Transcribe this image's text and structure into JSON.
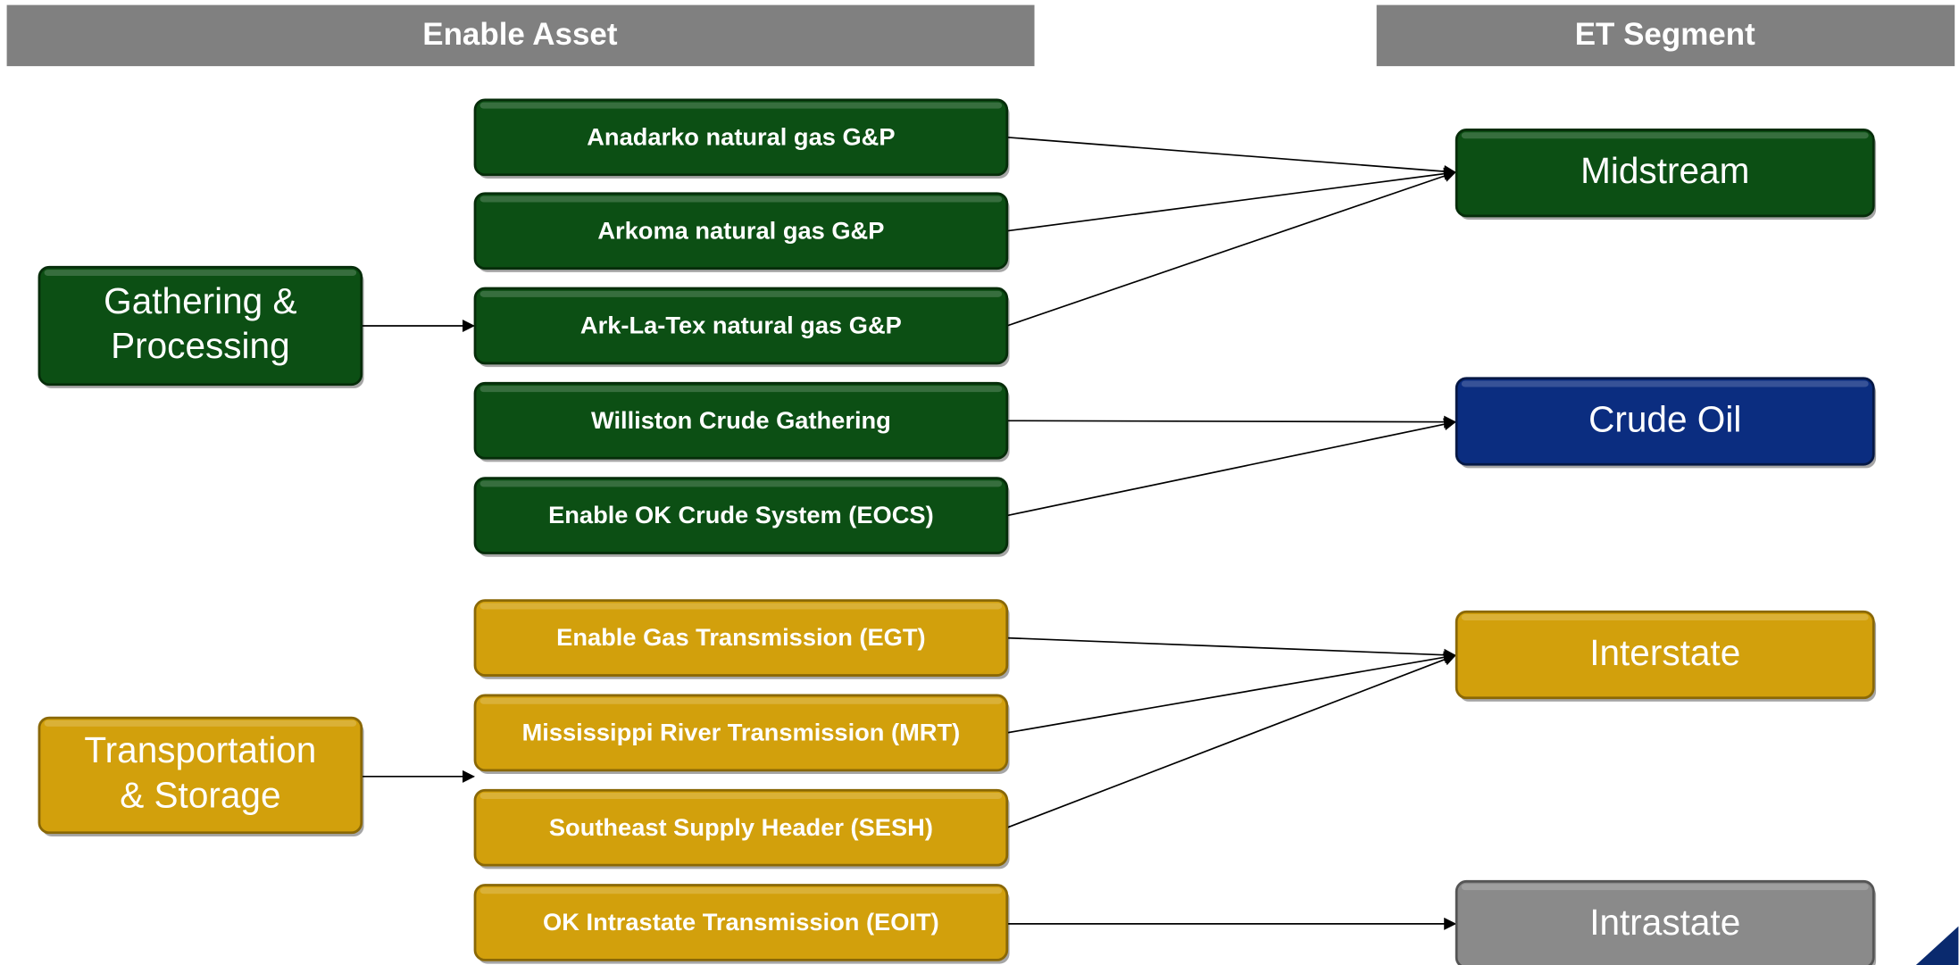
{
  "headers": [
    "Enable Asset",
    "ET Segment"
  ],
  "nodes": {
    "left": [
      {
        "lines": [
          "Gathering &",
          "Processing"
        ]
      },
      {
        "lines": [
          "Transportation",
          "& Storage"
        ]
      }
    ],
    "middle": [
      {
        "label": "Anadarko natural gas G&P"
      },
      {
        "label": "Arkoma natural gas G&P"
      },
      {
        "label": "Ark-La-Tex natural gas G&P"
      },
      {
        "label": "Williston Crude Gathering"
      },
      {
        "label": "Enable OK Crude System (EOCS)"
      },
      {
        "label": "Enable Gas Transmission (EGT)"
      },
      {
        "label": "Mississippi River Transmission (MRT)"
      },
      {
        "label": "Southeast Supply Header (SESH)"
      },
      {
        "label": "OK Intrastate Transmission (EOIT)"
      }
    ],
    "right": [
      {
        "label": "Midstream"
      },
      {
        "label": "Crude Oil"
      },
      {
        "label": "Interstate"
      },
      {
        "label": "Intrastate"
      }
    ]
  }
}
